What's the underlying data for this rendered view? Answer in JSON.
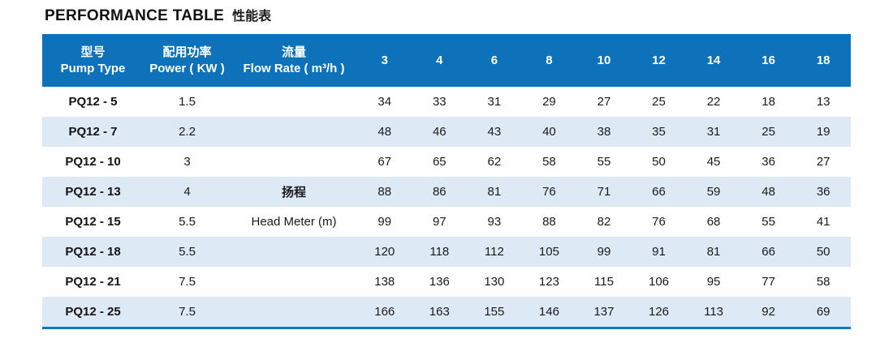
{
  "page": {
    "title_en": "PERFORMANCE TABLE",
    "title_zh": "性能表"
  },
  "table": {
    "header": {
      "pump_type_zh": "型号",
      "pump_type_en": "Pump Type",
      "power_zh": "配用功率",
      "power_en": "Power ( KW )",
      "flow_zh": "流量",
      "flow_en": "Flow Rate ( m³/h )",
      "flow_columns": [
        "3",
        "4",
        "6",
        "8",
        "10",
        "12",
        "14",
        "16",
        "18"
      ]
    },
    "head_label": {
      "zh": "扬程",
      "en": "Head Meter (m)",
      "zh_row_index": 3,
      "en_row_index": 4
    },
    "rows": [
      {
        "pump_type": "PQ12 - 5",
        "power": "1.5",
        "values": [
          "34",
          "33",
          "31",
          "29",
          "27",
          "25",
          "22",
          "18",
          "13"
        ]
      },
      {
        "pump_type": "PQ12 - 7",
        "power": "2.2",
        "values": [
          "48",
          "46",
          "43",
          "40",
          "38",
          "35",
          "31",
          "25",
          "19"
        ]
      },
      {
        "pump_type": "PQ12 - 10",
        "power": "3",
        "values": [
          "67",
          "65",
          "62",
          "58",
          "55",
          "50",
          "45",
          "36",
          "27"
        ]
      },
      {
        "pump_type": "PQ12 - 13",
        "power": "4",
        "values": [
          "88",
          "86",
          "81",
          "76",
          "71",
          "66",
          "59",
          "48",
          "36"
        ]
      },
      {
        "pump_type": "PQ12 - 15",
        "power": "5.5",
        "values": [
          "99",
          "97",
          "93",
          "88",
          "82",
          "76",
          "68",
          "55",
          "41"
        ]
      },
      {
        "pump_type": "PQ12 - 18",
        "power": "5.5",
        "values": [
          "120",
          "118",
          "112",
          "105",
          "99",
          "91",
          "81",
          "66",
          "50"
        ]
      },
      {
        "pump_type": "PQ12 - 21",
        "power": "7.5",
        "values": [
          "138",
          "136",
          "130",
          "123",
          "115",
          "106",
          "95",
          "77",
          "58"
        ]
      },
      {
        "pump_type": "PQ12 - 25",
        "power": "7.5",
        "values": [
          "166",
          "163",
          "155",
          "146",
          "137",
          "126",
          "113",
          "92",
          "69"
        ]
      }
    ]
  },
  "chart_data": {
    "type": "table",
    "title": "PERFORMANCE TABLE 性能表",
    "x_label": "Flow Rate ( m³/h )",
    "value_label": "扬程 Head Meter (m)",
    "flow_rate_m3h": [
      3,
      4,
      6,
      8,
      10,
      12,
      14,
      16,
      18
    ],
    "rows": [
      {
        "pump_type": "PQ12 - 5",
        "power_kw": 1.5,
        "head_m": [
          34,
          33,
          31,
          29,
          27,
          25,
          22,
          18,
          13
        ]
      },
      {
        "pump_type": "PQ12 - 7",
        "power_kw": 2.2,
        "head_m": [
          48,
          46,
          43,
          40,
          38,
          35,
          31,
          25,
          19
        ]
      },
      {
        "pump_type": "PQ12 - 10",
        "power_kw": 3,
        "head_m": [
          67,
          65,
          62,
          58,
          55,
          50,
          45,
          36,
          27
        ]
      },
      {
        "pump_type": "PQ12 - 13",
        "power_kw": 4,
        "head_m": [
          88,
          86,
          81,
          76,
          71,
          66,
          59,
          48,
          36
        ]
      },
      {
        "pump_type": "PQ12 - 15",
        "power_kw": 5.5,
        "head_m": [
          99,
          97,
          93,
          88,
          82,
          76,
          68,
          55,
          41
        ]
      },
      {
        "pump_type": "PQ12 - 18",
        "power_kw": 5.5,
        "head_m": [
          120,
          118,
          112,
          105,
          99,
          91,
          81,
          66,
          50
        ]
      },
      {
        "pump_type": "PQ12 - 21",
        "power_kw": 7.5,
        "head_m": [
          138,
          136,
          130,
          123,
          115,
          106,
          95,
          77,
          58
        ]
      },
      {
        "pump_type": "PQ12 - 25",
        "power_kw": 7.5,
        "head_m": [
          166,
          163,
          155,
          146,
          137,
          126,
          113,
          92,
          69
        ]
      }
    ]
  },
  "colors": {
    "header_bg": "#0d72b9",
    "header_text": "#ffffff",
    "row_alt_bg": "#dde9f5",
    "bottom_border": "#1076c1",
    "body_text": "#1a1a1a"
  }
}
